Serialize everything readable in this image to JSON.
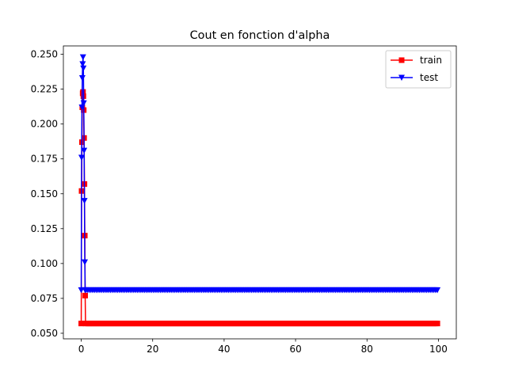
{
  "chart_data": {
    "type": "line",
    "title": "Cout en fonction d'alpha",
    "xlabel": "",
    "ylabel": "",
    "xlim": [
      -5,
      105
    ],
    "ylim": [
      0.046,
      0.256
    ],
    "x_ticks": [
      0,
      20,
      40,
      60,
      80,
      100
    ],
    "x_tick_labels": [
      "0",
      "20",
      "40",
      "60",
      "80",
      "100"
    ],
    "y_ticks": [
      0.05,
      0.075,
      0.1,
      0.125,
      0.15,
      0.175,
      0.2,
      0.225,
      0.25
    ],
    "y_tick_labels": [
      "0.050",
      "0.075",
      "0.100",
      "0.125",
      "0.150",
      "0.175",
      "0.200",
      "0.225",
      "0.250"
    ],
    "grid": false,
    "legend_position": "top-right",
    "spike": {
      "x": [
        0.0,
        0.1,
        0.2,
        0.3,
        0.4,
        0.5,
        0.6,
        0.7,
        0.8,
        0.9,
        1.0,
        1.1
      ],
      "train": [
        0.057,
        0.152,
        0.187,
        0.212,
        0.222,
        0.223,
        0.22,
        0.21,
        0.19,
        0.157,
        0.12,
        0.077
      ],
      "test": [
        0.081,
        0.176,
        0.212,
        0.233,
        0.243,
        0.248,
        0.24,
        0.215,
        0.181,
        0.145,
        0.101,
        0.081
      ]
    },
    "plateau": {
      "x_start": 1.2,
      "x_end": 100,
      "x_step": 0.5,
      "train": 0.057,
      "test": 0.081
    },
    "series": [
      {
        "name": "train",
        "color": "#ff0000",
        "marker": "square"
      },
      {
        "name": "test",
        "color": "#0000ff",
        "marker": "triangle-down"
      }
    ]
  }
}
